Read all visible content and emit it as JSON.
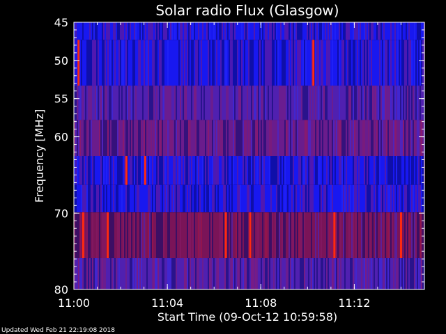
{
  "chart_data": {
    "type": "heatmap",
    "title": "Solar radio Flux (Glasgow)",
    "xlabel": "Start Time (09-Oct-12 10:59:58)",
    "ylabel": "Frequency [MHz]",
    "footer": "Updated Wed Feb 21 22:19:08 2018",
    "x_unit": "minutes after 11:00",
    "xlim": [
      0,
      15
    ],
    "ylim": [
      45,
      80
    ],
    "x_ticks": [
      {
        "label": "11:00",
        "value": 0
      },
      {
        "label": "11:04",
        "value": 4
      },
      {
        "label": "11:08",
        "value": 8
      },
      {
        "label": "11:12",
        "value": 12
      }
    ],
    "y_ticks": [
      {
        "label": "45",
        "value": 45
      },
      {
        "label": "50",
        "value": 50
      },
      {
        "label": "55",
        "value": 55
      },
      {
        "label": "60",
        "value": 60
      },
      {
        "label": "70",
        "value": 70
      },
      {
        "label": "80",
        "value": 80
      }
    ],
    "frequency_bands": [
      {
        "from": 45.0,
        "to": 47.3,
        "level": "low"
      },
      {
        "from": 47.3,
        "to": 53.3,
        "level": "low"
      },
      {
        "from": 53.3,
        "to": 57.8,
        "level": "medium"
      },
      {
        "from": 57.8,
        "to": 62.5,
        "level": "medium-high"
      },
      {
        "from": 62.5,
        "to": 66.3,
        "level": "low"
      },
      {
        "from": 66.3,
        "to": 69.9,
        "level": "low"
      },
      {
        "from": 69.9,
        "to": 75.9,
        "level": "high"
      },
      {
        "from": 75.9,
        "to": 80.0,
        "level": "medium"
      }
    ],
    "bursts": [
      {
        "time": 0.2,
        "from": 47.3,
        "to": 53.3
      },
      {
        "time": 10.25,
        "from": 47.3,
        "to": 53.3
      },
      {
        "time": 2.25,
        "from": 62.5,
        "to": 66.3
      },
      {
        "time": 3.05,
        "from": 62.5,
        "to": 66.3
      },
      {
        "time": 0.4,
        "from": 69.9,
        "to": 75.9
      },
      {
        "time": 1.45,
        "from": 69.9,
        "to": 75.9
      },
      {
        "time": 6.5,
        "from": 69.9,
        "to": 75.9
      },
      {
        "time": 7.55,
        "from": 69.9,
        "to": 75.9
      },
      {
        "time": 11.15,
        "from": 69.9,
        "to": 75.9
      },
      {
        "time": 14.0,
        "from": 69.9,
        "to": 75.9
      }
    ],
    "colors": {
      "low": "#1818f0",
      "medium": "#5020b0",
      "medium-high": "#6a1c8c",
      "high": "#7a1458",
      "burst": "#ff2a10",
      "axis": "#ffffff"
    }
  }
}
